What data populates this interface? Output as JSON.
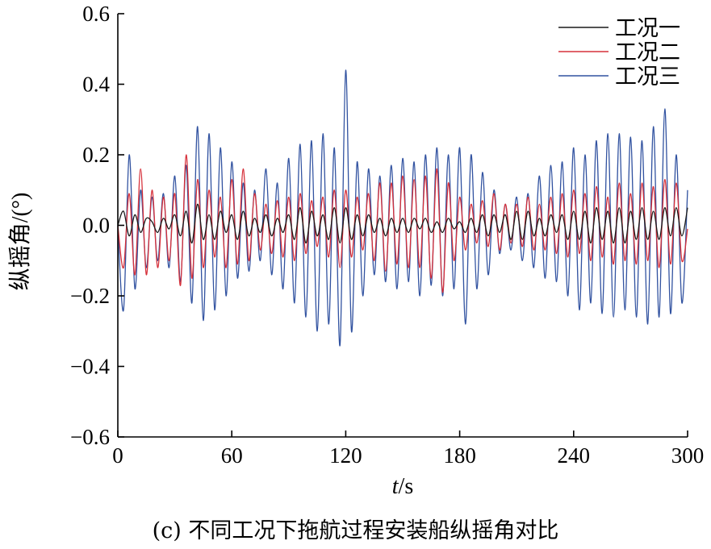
{
  "caption": "(c) 不同工况下拖航过程安装船纵摇角对比",
  "chart_data": {
    "type": "line",
    "title": "",
    "xlabel_italic": "t",
    "xlabel_unit": "/s",
    "ylabel": "纵摇角/(°)",
    "xlim": [
      0,
      300
    ],
    "ylim": [
      -0.6,
      0.6
    ],
    "xticks": [
      0,
      60,
      120,
      180,
      240,
      300
    ],
    "xtick_labels": [
      "0",
      "60",
      "120",
      "180",
      "240",
      "300"
    ],
    "yticks": [
      -0.6,
      -0.4,
      -0.2,
      0.0,
      0.2,
      0.4,
      0.6
    ],
    "ytick_labels": [
      "−0.6",
      "−0.4",
      "−0.2",
      "0.0",
      "0.2",
      "0.4",
      "0.6"
    ],
    "grid": false,
    "legend_position": "top-right",
    "series": [
      {
        "name": "工况一",
        "color": "#1a1a1a",
        "x": [
          0,
          3,
          6,
          9,
          12,
          15,
          18,
          21,
          24,
          27,
          30,
          33,
          36,
          39,
          42,
          45,
          48,
          51,
          54,
          57,
          60,
          63,
          66,
          69,
          72,
          75,
          78,
          81,
          84,
          87,
          90,
          93,
          96,
          99,
          102,
          105,
          108,
          111,
          114,
          117,
          120,
          123,
          126,
          129,
          132,
          135,
          138,
          141,
          144,
          147,
          150,
          153,
          156,
          159,
          162,
          165,
          168,
          171,
          174,
          177,
          180,
          183,
          186,
          189,
          192,
          195,
          198,
          201,
          204,
          207,
          210,
          213,
          216,
          219,
          222,
          225,
          228,
          231,
          234,
          237,
          240,
          243,
          246,
          249,
          252,
          255,
          258,
          261,
          264,
          267,
          270,
          273,
          276,
          279,
          282,
          285,
          288,
          291,
          294,
          297,
          300
        ],
        "y": [
          0.0,
          0.04,
          -0.03,
          0.03,
          -0.02,
          0.02,
          0.01,
          -0.02,
          0.02,
          -0.01,
          0.03,
          -0.03,
          0.04,
          -0.05,
          0.06,
          -0.04,
          0.03,
          -0.04,
          0.04,
          -0.02,
          0.03,
          -0.04,
          0.04,
          -0.03,
          0.02,
          -0.02,
          0.03,
          -0.03,
          0.02,
          -0.02,
          0.03,
          -0.04,
          0.05,
          -0.05,
          0.04,
          -0.03,
          0.03,
          -0.04,
          0.05,
          -0.05,
          0.05,
          -0.04,
          0.03,
          -0.03,
          0.03,
          -0.02,
          0.02,
          -0.03,
          0.02,
          -0.02,
          0.02,
          -0.02,
          0.02,
          -0.01,
          0.02,
          -0.02,
          0.01,
          -0.02,
          0.02,
          -0.01,
          0.01,
          -0.02,
          0.02,
          -0.02,
          0.03,
          -0.03,
          0.03,
          -0.02,
          0.03,
          -0.04,
          0.04,
          -0.04,
          0.04,
          -0.03,
          0.02,
          -0.03,
          0.03,
          -0.02,
          0.03,
          -0.04,
          0.04,
          -0.04,
          0.04,
          -0.05,
          0.05,
          -0.04,
          0.04,
          -0.05,
          0.05,
          -0.05,
          0.04,
          -0.04,
          0.05,
          -0.04,
          0.04,
          -0.04,
          0.05,
          -0.03,
          0.05,
          -0.03,
          0.05
        ]
      },
      {
        "name": "工况二",
        "color": "#d6303a",
        "x": [
          0,
          3,
          6,
          9,
          12,
          15,
          18,
          21,
          24,
          27,
          30,
          33,
          36,
          39,
          42,
          45,
          48,
          51,
          54,
          57,
          60,
          63,
          66,
          69,
          72,
          75,
          78,
          81,
          84,
          87,
          90,
          93,
          96,
          99,
          102,
          105,
          108,
          111,
          114,
          117,
          120,
          123,
          126,
          129,
          132,
          135,
          138,
          141,
          144,
          147,
          150,
          153,
          156,
          159,
          162,
          165,
          168,
          171,
          174,
          177,
          180,
          183,
          186,
          189,
          192,
          195,
          198,
          201,
          204,
          207,
          210,
          213,
          216,
          219,
          222,
          225,
          228,
          231,
          234,
          237,
          240,
          243,
          246,
          249,
          252,
          255,
          258,
          261,
          264,
          267,
          270,
          273,
          276,
          279,
          282,
          285,
          288,
          291,
          294,
          297,
          300
        ],
        "y": [
          0.0,
          -0.12,
          0.09,
          -0.14,
          0.16,
          -0.14,
          0.1,
          -0.12,
          0.08,
          -0.1,
          0.09,
          -0.17,
          0.2,
          -0.15,
          0.13,
          -0.12,
          0.1,
          -0.09,
          0.08,
          -0.12,
          0.13,
          -0.11,
          0.16,
          -0.1,
          0.09,
          -0.07,
          0.06,
          -0.08,
          0.07,
          -0.09,
          0.08,
          -0.1,
          0.09,
          -0.08,
          0.07,
          -0.06,
          0.08,
          -0.09,
          0.1,
          -0.12,
          0.1,
          -0.09,
          0.08,
          -0.07,
          0.09,
          -0.1,
          0.12,
          -0.13,
          0.12,
          -0.11,
          0.14,
          -0.12,
          0.13,
          -0.12,
          0.14,
          -0.15,
          0.16,
          -0.19,
          0.12,
          -0.1,
          0.08,
          -0.07,
          0.06,
          -0.05,
          0.07,
          -0.06,
          0.09,
          -0.07,
          0.06,
          -0.05,
          0.06,
          -0.06,
          0.08,
          -0.07,
          0.06,
          -0.07,
          0.08,
          -0.08,
          0.09,
          -0.09,
          0.1,
          -0.08,
          0.09,
          -0.1,
          0.11,
          -0.09,
          0.08,
          -0.11,
          0.12,
          -0.1,
          0.09,
          -0.11,
          0.12,
          -0.1,
          0.11,
          -0.12,
          0.13,
          -0.11,
          0.12,
          -0.1,
          -0.01
        ]
      },
      {
        "name": "工况三",
        "color": "#3152a0",
        "x": [
          0,
          3,
          6,
          9,
          12,
          15,
          18,
          21,
          24,
          27,
          30,
          33,
          36,
          39,
          42,
          45,
          48,
          51,
          54,
          57,
          60,
          63,
          66,
          69,
          72,
          75,
          78,
          81,
          84,
          87,
          90,
          93,
          96,
          99,
          102,
          105,
          108,
          111,
          114,
          117,
          120,
          123,
          126,
          129,
          132,
          135,
          138,
          141,
          144,
          147,
          150,
          153,
          156,
          159,
          162,
          165,
          168,
          171,
          174,
          177,
          180,
          183,
          186,
          189,
          192,
          195,
          198,
          201,
          204,
          207,
          210,
          213,
          216,
          219,
          222,
          225,
          228,
          231,
          234,
          237,
          240,
          243,
          246,
          249,
          252,
          255,
          258,
          261,
          264,
          267,
          270,
          273,
          276,
          279,
          282,
          285,
          288,
          291,
          294,
          297,
          300
        ],
        "y": [
          0.0,
          -0.24,
          0.2,
          -0.18,
          0.1,
          -0.12,
          0.08,
          -0.1,
          0.09,
          -0.12,
          0.14,
          -0.16,
          0.17,
          -0.22,
          0.28,
          -0.27,
          0.26,
          -0.24,
          0.22,
          -0.2,
          0.18,
          -0.15,
          0.12,
          -0.13,
          0.1,
          -0.1,
          0.16,
          -0.14,
          0.12,
          -0.18,
          0.19,
          -0.22,
          0.23,
          -0.26,
          0.24,
          -0.3,
          0.26,
          -0.28,
          0.22,
          -0.34,
          0.44,
          -0.3,
          0.18,
          -0.2,
          0.16,
          -0.14,
          0.14,
          -0.16,
          0.17,
          -0.18,
          0.19,
          -0.16,
          0.18,
          -0.2,
          0.2,
          -0.17,
          0.22,
          -0.2,
          0.2,
          -0.18,
          0.22,
          -0.28,
          0.2,
          -0.18,
          0.15,
          -0.14,
          0.1,
          -0.08,
          0.06,
          -0.07,
          0.08,
          -0.1,
          0.09,
          -0.12,
          0.14,
          -0.15,
          0.17,
          -0.16,
          0.18,
          -0.2,
          0.22,
          -0.24,
          0.2,
          -0.22,
          0.24,
          -0.25,
          0.26,
          -0.26,
          0.26,
          -0.24,
          0.25,
          -0.26,
          0.24,
          -0.28,
          0.28,
          -0.26,
          0.33,
          -0.25,
          0.2,
          -0.22,
          0.1
        ]
      }
    ]
  }
}
